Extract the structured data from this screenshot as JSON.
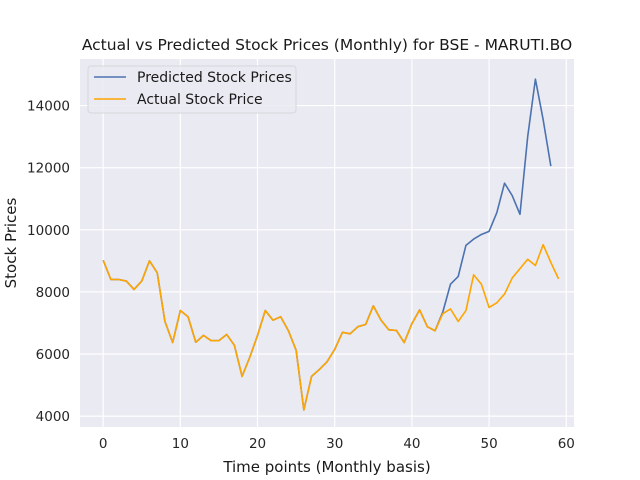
{
  "chart_data": {
    "type": "line",
    "title": "Actual vs Predicted Stock Prices (Monthly) for BSE - MARUTI.BO",
    "xlabel": "Time points (Monthly basis)",
    "ylabel": "Stock Prices",
    "xlim": [
      -3,
      61
    ],
    "ylim": [
      3650,
      15500
    ],
    "xticks": [
      0,
      10,
      20,
      30,
      40,
      50,
      60
    ],
    "yticks": [
      4000,
      6000,
      8000,
      10000,
      12000,
      14000
    ],
    "grid": true,
    "legend": "top-left",
    "series": [
      {
        "name": "Predicted Stock Prices",
        "color": "#4c72b0",
        "x": [
          0,
          1,
          2,
          3,
          4,
          5,
          6,
          7,
          8,
          9,
          10,
          11,
          12,
          13,
          14,
          15,
          16,
          17,
          18,
          19,
          20,
          21,
          22,
          23,
          24,
          25,
          26,
          27,
          28,
          29,
          30,
          31,
          32,
          33,
          34,
          35,
          36,
          37,
          38,
          39,
          40,
          41,
          42,
          43,
          44,
          45,
          46,
          47,
          48,
          49,
          50,
          51,
          52,
          53,
          54,
          55,
          56,
          57,
          58
        ],
        "values": [
          9020,
          8400,
          8400,
          8350,
          8080,
          8350,
          9000,
          8620,
          7050,
          6370,
          7400,
          7200,
          6380,
          6600,
          6430,
          6430,
          6630,
          6280,
          5280,
          5900,
          6600,
          7400,
          7090,
          7200,
          6750,
          6120,
          4200,
          5280,
          5500,
          5750,
          6150,
          6700,
          6650,
          6880,
          6950,
          7550,
          7090,
          6780,
          6760,
          6370,
          6980,
          7420,
          6880,
          6750,
          7350,
          8250,
          8500,
          9500,
          9700,
          9850,
          9950,
          10550,
          11500,
          11100,
          10500,
          13000,
          14850,
          13550,
          12050
        ]
      },
      {
        "name": "Actual Stock Price",
        "color": "#ffa500",
        "x": [
          0,
          1,
          2,
          3,
          4,
          5,
          6,
          7,
          8,
          9,
          10,
          11,
          12,
          13,
          14,
          15,
          16,
          17,
          18,
          19,
          20,
          21,
          22,
          23,
          24,
          25,
          26,
          27,
          28,
          29,
          30,
          31,
          32,
          33,
          34,
          35,
          36,
          37,
          38,
          39,
          40,
          41,
          42,
          43,
          44,
          45,
          46,
          47,
          48,
          49,
          50,
          51,
          52,
          53,
          54,
          55,
          56,
          57,
          58,
          59
        ],
        "values": [
          9020,
          8400,
          8400,
          8350,
          8080,
          8350,
          9000,
          8620,
          7050,
          6370,
          7400,
          7200,
          6380,
          6600,
          6430,
          6430,
          6630,
          6280,
          5280,
          5900,
          6600,
          7400,
          7090,
          7200,
          6750,
          6120,
          4200,
          5280,
          5500,
          5750,
          6150,
          6700,
          6650,
          6880,
          6950,
          7550,
          7090,
          6780,
          6760,
          6370,
          6980,
          7420,
          6880,
          6750,
          7300,
          7450,
          7050,
          7400,
          8550,
          8250,
          7500,
          7650,
          7930,
          8450,
          8750,
          9050,
          8850,
          9520,
          8950,
          8420
        ]
      }
    ]
  }
}
